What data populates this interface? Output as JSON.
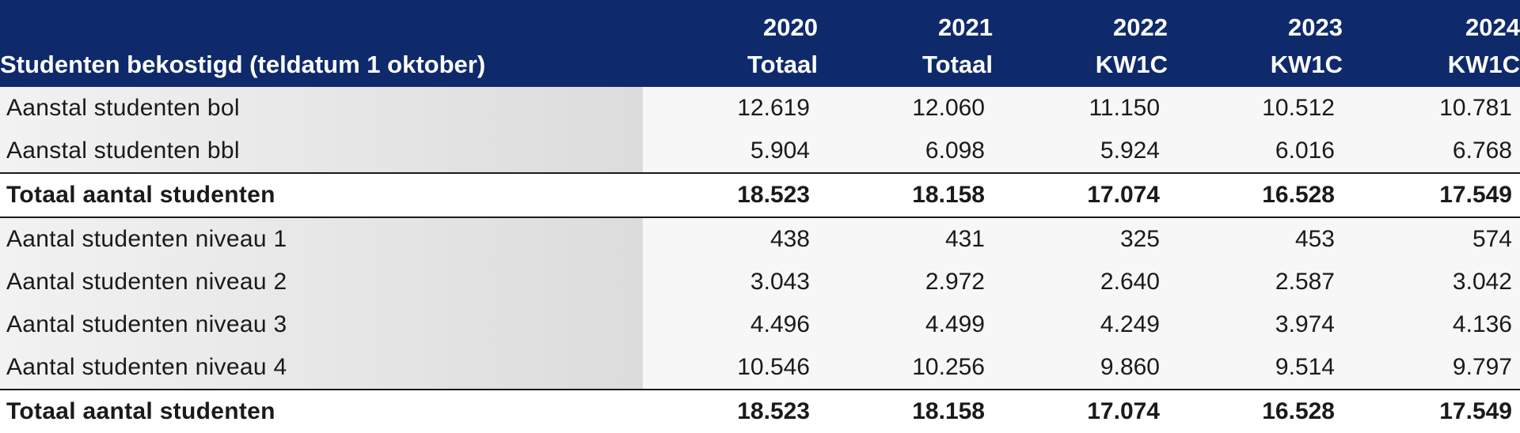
{
  "table": {
    "header": {
      "row_label": "Studenten bekostigd (teldatum 1 oktober)",
      "years": [
        "2020",
        "2021",
        "2022",
        "2023",
        "2024"
      ],
      "subtitles": [
        "Totaal",
        "Totaal",
        "KW1C",
        "KW1C",
        "KW1C"
      ]
    },
    "rows": [
      {
        "label": "Aanstal studenten bol",
        "values": [
          "12.619",
          "12.060",
          "11.150",
          "10.512",
          "10.781"
        ]
      },
      {
        "label": "Aanstal studenten bbl",
        "values": [
          "5.904",
          "6.098",
          "5.924",
          "6.016",
          "6.768"
        ]
      },
      {
        "label": "Totaal aantal studenten",
        "values": [
          "18.523",
          "18.158",
          "17.074",
          "16.528",
          "17.549"
        ]
      },
      {
        "label": "Aantal studenten niveau 1",
        "values": [
          "438",
          "431",
          "325",
          "453",
          "574"
        ]
      },
      {
        "label": "Aantal studenten niveau 2",
        "values": [
          "3.043",
          "2.972",
          "2.640",
          "2.587",
          "3.042"
        ]
      },
      {
        "label": "Aantal studenten niveau 3",
        "values": [
          "4.496",
          "4.499",
          "4.249",
          "3.974",
          "4.136"
        ]
      },
      {
        "label": "Aantal studenten niveau 4",
        "values": [
          "10.546",
          "10.256",
          "9.860",
          "9.514",
          "9.797"
        ]
      },
      {
        "label": "Totaal aantal studenten",
        "values": [
          "18.523",
          "18.158",
          "17.074",
          "16.528",
          "17.549"
        ]
      }
    ]
  },
  "colors": {
    "header_bg": "#0f2a6b",
    "header_text": "#ffffff",
    "label_bg": "#dcdcdc"
  }
}
